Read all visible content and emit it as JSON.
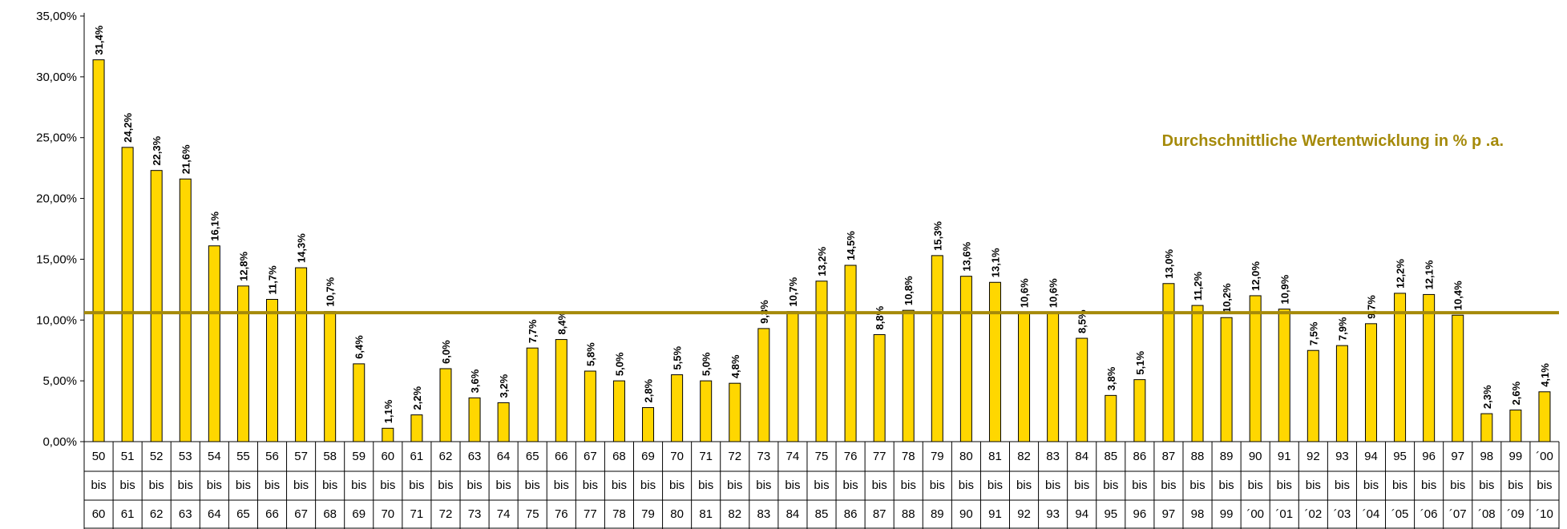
{
  "chart_data": {
    "type": "bar",
    "title": "",
    "xlabel": "",
    "ylabel": "",
    "ylim": [
      0,
      35
    ],
    "yticks": [
      "0,00%",
      "5,00%",
      "10,00%",
      "15,00%",
      "20,00%",
      "25,00%",
      "30,00%",
      "35,00%"
    ],
    "bar_color": "#FFD700",
    "bar_outline": "#000000",
    "average_line": {
      "label": "Durchschnittliche Wertentwicklung in % p .a.",
      "value": 10.6,
      "color": "#A58A0A"
    },
    "categories": [
      [
        "50",
        "bis",
        "60"
      ],
      [
        "51",
        "bis",
        "61"
      ],
      [
        "52",
        "bis",
        "62"
      ],
      [
        "53",
        "bis",
        "63"
      ],
      [
        "54",
        "bis",
        "64"
      ],
      [
        "55",
        "bis",
        "65"
      ],
      [
        "56",
        "bis",
        "66"
      ],
      [
        "57",
        "bis",
        "67"
      ],
      [
        "58",
        "bis",
        "68"
      ],
      [
        "59",
        "bis",
        "69"
      ],
      [
        "60",
        "bis",
        "70"
      ],
      [
        "61",
        "bis",
        "71"
      ],
      [
        "62",
        "bis",
        "72"
      ],
      [
        "63",
        "bis",
        "73"
      ],
      [
        "64",
        "bis",
        "74"
      ],
      [
        "65",
        "bis",
        "75"
      ],
      [
        "66",
        "bis",
        "76"
      ],
      [
        "67",
        "bis",
        "77"
      ],
      [
        "68",
        "bis",
        "78"
      ],
      [
        "69",
        "bis",
        "79"
      ],
      [
        "70",
        "bis",
        "80"
      ],
      [
        "71",
        "bis",
        "81"
      ],
      [
        "72",
        "bis",
        "82"
      ],
      [
        "73",
        "bis",
        "83"
      ],
      [
        "74",
        "bis",
        "84"
      ],
      [
        "75",
        "bis",
        "85"
      ],
      [
        "76",
        "bis",
        "86"
      ],
      [
        "77",
        "bis",
        "87"
      ],
      [
        "78",
        "bis",
        "88"
      ],
      [
        "79",
        "bis",
        "89"
      ],
      [
        "80",
        "bis",
        "90"
      ],
      [
        "81",
        "bis",
        "91"
      ],
      [
        "82",
        "bis",
        "92"
      ],
      [
        "83",
        "bis",
        "93"
      ],
      [
        "84",
        "bis",
        "94"
      ],
      [
        "85",
        "bis",
        "95"
      ],
      [
        "86",
        "bis",
        "96"
      ],
      [
        "87",
        "bis",
        "97"
      ],
      [
        "88",
        "bis",
        "98"
      ],
      [
        "89",
        "bis",
        "99"
      ],
      [
        "90",
        "bis",
        "´00"
      ],
      [
        "91",
        "bis",
        "´01"
      ],
      [
        "92",
        "bis",
        "´02"
      ],
      [
        "93",
        "bis",
        "´03"
      ],
      [
        "94",
        "bis",
        "´04"
      ],
      [
        "95",
        "bis",
        "´05"
      ],
      [
        "96",
        "bis",
        "´06"
      ],
      [
        "97",
        "bis",
        "´07"
      ],
      [
        "98",
        "bis",
        "´08"
      ],
      [
        "99",
        "bis",
        "´09"
      ],
      [
        "´00",
        "bis",
        "´10"
      ]
    ],
    "values": [
      31.4,
      24.2,
      22.3,
      21.6,
      16.1,
      12.8,
      11.7,
      14.3,
      10.7,
      6.4,
      1.1,
      2.2,
      6.0,
      3.6,
      3.2,
      7.7,
      8.4,
      5.8,
      5.0,
      2.8,
      5.5,
      5.0,
      4.8,
      9.3,
      10.7,
      13.2,
      14.5,
      8.8,
      10.8,
      15.3,
      13.6,
      13.1,
      10.6,
      10.6,
      8.5,
      3.8,
      5.1,
      13.0,
      11.2,
      10.2,
      12.0,
      10.9,
      7.5,
      7.9,
      9.7,
      12.2,
      12.1,
      10.4,
      2.3,
      2.6,
      4.1
    ],
    "value_labels": [
      "31,4%",
      "24,2%",
      "22,3%",
      "21,6%",
      "16,1%",
      "12,8%",
      "11,7%",
      "14,3%",
      "10,7%",
      "6,4%",
      "1,1%",
      "2,2%",
      "6,0%",
      "3,6%",
      "3,2%",
      "7,7%",
      "8,4%",
      "5,8%",
      "5,0%",
      "2,8%",
      "5,5%",
      "5,0%",
      "4,8%",
      "9,3%",
      "10,7%",
      "13,2%",
      "14,5%",
      "8,8%",
      "10,8%",
      "15,3%",
      "13,6%",
      "13,1%",
      "10,6%",
      "10,6%",
      "8,5%",
      "3,8%",
      "5,1%",
      "13,0%",
      "11,2%",
      "10,2%",
      "12,0%",
      "10,9%",
      "7,5%",
      "7,9%",
      "9,7%",
      "12,2%",
      "12,1%",
      "10,4%",
      "2,3%",
      "2,6%",
      "4,1%"
    ]
  }
}
